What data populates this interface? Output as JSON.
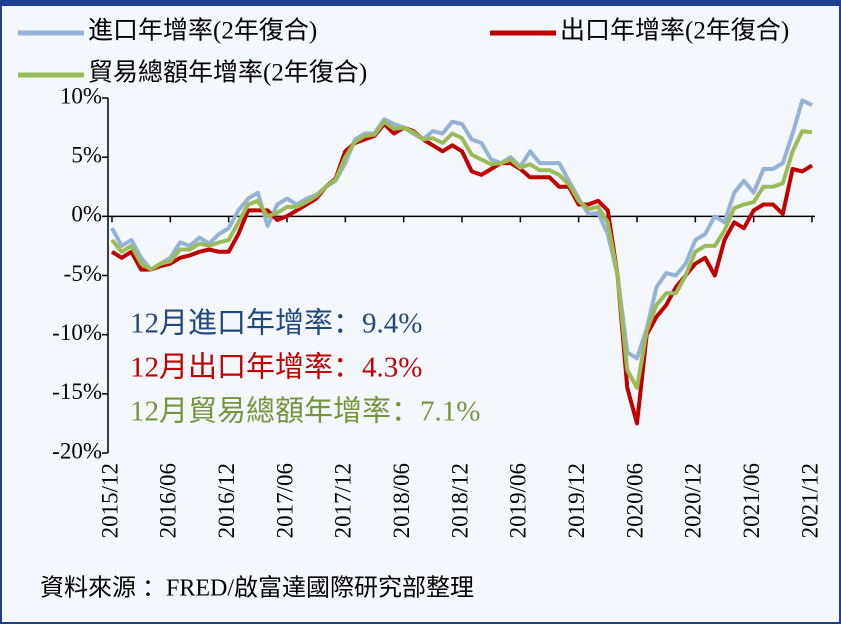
{
  "chart_data": {
    "type": "line",
    "series": [
      {
        "name": "進口年增率(2年復合)",
        "color": "#95b3d7",
        "values": [
          -1.0,
          -2.5,
          -2.0,
          -3.5,
          -4.5,
          -4.0,
          -3.5,
          -2.2,
          -2.5,
          -1.8,
          -2.3,
          -1.5,
          -1.0,
          0.5,
          1.5,
          2.0,
          -0.8,
          1.0,
          1.5,
          1.0,
          1.5,
          1.8,
          2.5,
          3.0,
          4.5,
          6.5,
          7.0,
          7.0,
          8.2,
          7.8,
          7.5,
          7.0,
          6.5,
          7.2,
          7.0,
          8.0,
          7.8,
          6.5,
          6.2,
          4.8,
          4.5,
          5.0,
          4.2,
          5.5,
          4.5,
          4.5,
          4.5,
          3.0,
          1.5,
          0.2,
          0.3,
          -1.5,
          -5.0,
          -11.5,
          -12.0,
          -9.5,
          -6.0,
          -4.8,
          -5.0,
          -4.0,
          -2.0,
          -1.5,
          0.0,
          -0.5,
          2.0,
          3.0,
          2.0,
          4.0,
          4.0,
          4.5,
          7.0,
          9.8,
          9.4
        ]
      },
      {
        "name": "出口年增率(2年復合)",
        "color": "#c00000",
        "values": [
          -3.0,
          -3.5,
          -3.0,
          -4.5,
          -4.5,
          -4.2,
          -4.0,
          -3.5,
          -3.3,
          -3.0,
          -2.8,
          -3.0,
          -3.0,
          -1.5,
          0.5,
          0.5,
          0.5,
          -0.3,
          0.0,
          0.5,
          1.0,
          1.5,
          2.5,
          3.2,
          5.5,
          6.2,
          6.5,
          6.8,
          7.8,
          7.0,
          7.5,
          7.2,
          6.5,
          6.0,
          5.5,
          6.0,
          5.5,
          3.8,
          3.5,
          4.0,
          4.5,
          4.5,
          4.0,
          3.3,
          3.3,
          3.3,
          2.5,
          2.5,
          1.0,
          1.0,
          1.3,
          0.5,
          -5.0,
          -14.5,
          -17.5,
          -10.0,
          -8.5,
          -7.5,
          -6.0,
          -5.0,
          -4.0,
          -3.5,
          -5.0,
          -2.0,
          -0.5,
          -1.0,
          0.5,
          1.0,
          1.0,
          0.2,
          4.0,
          3.8,
          4.3
        ]
      },
      {
        "name": "貿易總額年增率(2年復合)",
        "color": "#9bbb59",
        "values": [
          -2.0,
          -3.0,
          -2.5,
          -4.0,
          -4.5,
          -4.0,
          -3.8,
          -2.8,
          -2.8,
          -2.3,
          -2.5,
          -2.2,
          -2.0,
          -0.5,
          1.0,
          1.3,
          0.0,
          0.3,
          0.8,
          0.8,
          1.2,
          1.7,
          2.5,
          3.1,
          5.0,
          6.3,
          6.8,
          6.9,
          8.0,
          7.4,
          7.5,
          7.1,
          6.5,
          6.6,
          6.2,
          7.0,
          6.6,
          5.2,
          4.8,
          4.4,
          4.5,
          4.8,
          4.1,
          4.4,
          3.9,
          3.9,
          3.5,
          2.7,
          1.3,
          0.6,
          0.8,
          -0.5,
          -5.0,
          -13.0,
          -14.5,
          -9.7,
          -7.5,
          -6.5,
          -6.5,
          -5.0,
          -3.0,
          -2.5,
          -2.5,
          -1.2,
          0.7,
          1.0,
          1.2,
          2.5,
          2.5,
          2.8,
          5.5,
          7.2,
          7.1
        ]
      }
    ],
    "categories": [
      "2015/12",
      null,
      null,
      null,
      null,
      null,
      "2016/06",
      null,
      null,
      null,
      null,
      null,
      "2016/12",
      null,
      null,
      null,
      null,
      null,
      "2017/06",
      null,
      null,
      null,
      null,
      null,
      "2017/12",
      null,
      null,
      null,
      null,
      null,
      "2018/06",
      null,
      null,
      null,
      null,
      null,
      "2018/12",
      null,
      null,
      null,
      null,
      null,
      "2019/06",
      null,
      null,
      null,
      null,
      null,
      "2019/12",
      null,
      null,
      null,
      null,
      null,
      "2020/06",
      null,
      null,
      null,
      null,
      null,
      "2020/12",
      null,
      null,
      null,
      null,
      null,
      "2021/06",
      null,
      null,
      null,
      null,
      null,
      "2021/12"
    ],
    "ylim": [
      -20,
      10
    ],
    "yticks": [
      {
        "value": -20,
        "label": "-20%"
      },
      {
        "value": -15,
        "label": "-15%"
      },
      {
        "value": -10,
        "label": "-10%"
      },
      {
        "value": -5,
        "label": "-5%"
      },
      {
        "value": 0,
        "label": "0%"
      },
      {
        "value": 5,
        "label": "5%"
      },
      {
        "value": 10,
        "label": "10%"
      }
    ],
    "annotations": [
      {
        "text": "12月進口年增率：9.4%",
        "color": "#1f497d"
      },
      {
        "text": "12月出口年增率：4.3%",
        "color": "#c00000"
      },
      {
        "text": "12月貿易總額年增率：7.1%",
        "color": "#77933c"
      }
    ],
    "source": "資料來源 ：FRED/啟富達國際研究部整理"
  }
}
